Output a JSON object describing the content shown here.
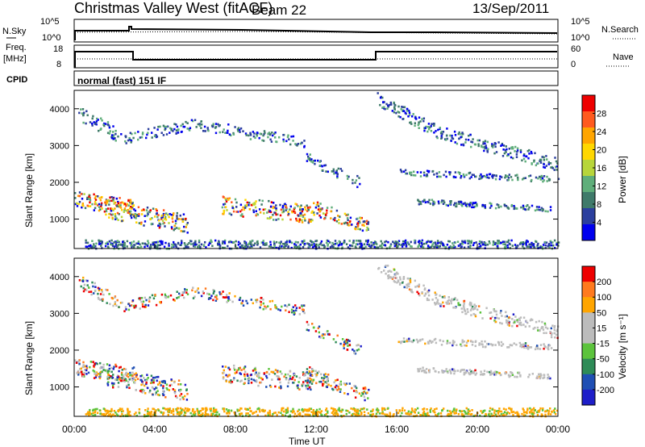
{
  "header": {
    "station": "Christmas Valley West (fitACF)",
    "beam": "Beam 22",
    "date": "13/Sep/2011"
  },
  "top_panels": {
    "nsky_label": "N.Sky",
    "nsky_ticks": [
      "10^5",
      "10^0"
    ],
    "nsearch_label": "N.Search",
    "nsearch_ticks": [
      "10^5",
      "10^0"
    ],
    "freq_label": "Freq.",
    "freq_unit": "[MHz]",
    "freq_ticks": [
      "18",
      "8"
    ],
    "nave_label": "Nave",
    "nave_ticks": [
      "60",
      "0"
    ],
    "cpid_label": "CPID",
    "cpid_text": "normal (fast) 151 IF"
  },
  "chart_data": [
    {
      "type": "heatmap",
      "name": "power",
      "ylabel": "Slant Range [km]",
      "yticks": [
        "4000",
        "3000",
        "2000",
        "1000"
      ],
      "ylim": [
        200,
        4500
      ],
      "xlim": [
        0,
        24
      ],
      "colorbar_label": "Power [dB]",
      "colorbar_ticks": [
        "28",
        "24",
        "20",
        "16",
        "12",
        "8",
        "4"
      ],
      "colorbar_colors": [
        "#0000ee",
        "#2b3f9e",
        "#3f7a6a",
        "#5fae7a",
        "#b7d53b",
        "#ffd700",
        "#ffa500",
        "#ff5a1e",
        "#ee0000"
      ],
      "clim": [
        0,
        32
      ]
    },
    {
      "type": "heatmap",
      "name": "velocity",
      "ylabel": "Slant Range [km]",
      "yticks": [
        "4000",
        "3000",
        "2000",
        "1000"
      ],
      "ylim": [
        200,
        4500
      ],
      "xlim": [
        0,
        24
      ],
      "xlabel": "Time UT",
      "xticks": [
        "00:00",
        "04:00",
        "08:00",
        "12:00",
        "16:00",
        "20:00",
        "00:00"
      ],
      "colorbar_label": "Velocity [m s⁻¹]",
      "colorbar_ticks": [
        "200",
        "100",
        "50",
        "15",
        "-15",
        "-50",
        "-100",
        "-200"
      ],
      "colorbar_colors": [
        "#1e1ec8",
        "#1f4fb4",
        "#2e8b57",
        "#5cc33c",
        "#bcbcbc",
        "#bcbcbc",
        "#ffa500",
        "#ff7a1e",
        "#ee0000"
      ],
      "clim": [
        -250,
        250
      ]
    }
  ]
}
